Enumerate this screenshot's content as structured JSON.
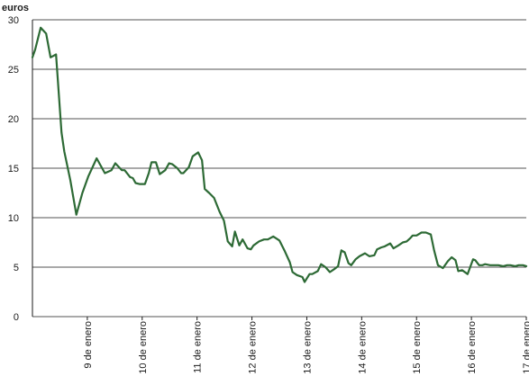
{
  "chart_data": {
    "type": "line",
    "title": "",
    "ylabel": "euros",
    "xlabel": "",
    "ylim": [
      0,
      30
    ],
    "yticks": [
      0,
      5,
      10,
      15,
      20,
      25,
      30
    ],
    "grid": true,
    "x_tick_labels": [
      {
        "x": 1,
        "label": "9 de enero"
      },
      {
        "x": 2,
        "label": "10 de enero"
      },
      {
        "x": 3,
        "label": "11 de enero"
      },
      {
        "x": 4,
        "label": "12 de enero"
      },
      {
        "x": 5,
        "label": "13 de enero"
      },
      {
        "x": 6,
        "label": "14 de enero"
      },
      {
        "x": 7,
        "label": "15 de enero"
      },
      {
        "x": 8,
        "label": "16 de enero"
      },
      {
        "x": 9,
        "label": "17 de enero"
      }
    ],
    "colors": {
      "series": "#2d6a35",
      "grid": "#1a1a1a"
    },
    "series": [
      {
        "x": [
          0,
          0.05,
          0.15,
          0.25,
          0.33,
          0.43,
          0.53,
          0.58,
          0.69,
          0.8,
          0.91,
          1.02,
          1.17,
          1.32,
          1.44,
          1.51,
          1.63,
          1.68,
          1.78,
          1.83,
          1.88,
          1.95,
          2.05,
          2.12,
          2.17,
          2.25,
          2.32,
          2.42,
          2.49,
          2.55,
          2.64,
          2.71,
          2.75,
          2.85,
          2.92,
          3.02,
          3.09,
          3.14,
          3.22,
          3.31,
          3.41,
          3.49,
          3.56,
          3.64,
          3.69,
          3.77,
          3.83,
          3.92,
          3.98,
          4.03,
          4.13,
          4.22,
          4.29,
          4.39,
          4.5,
          4.6,
          4.69,
          4.74,
          4.82,
          4.92,
          4.96,
          5.05,
          5.1,
          5.2,
          5.26,
          5.34,
          5.42,
          5.5,
          5.57,
          5.63,
          5.69,
          5.76,
          5.81,
          5.89,
          5.96,
          6.06,
          6.14,
          6.23,
          6.28,
          6.36,
          6.42,
          6.52,
          6.58,
          6.67,
          6.75,
          6.82,
          6.88,
          6.93,
          7,
          7.09,
          7.17,
          7.26,
          7.32,
          7.39,
          7.48,
          7.57,
          7.64,
          7.71,
          7.76,
          7.83,
          7.93,
          8.03,
          8.07,
          8.14,
          8.2,
          8.25,
          8.34,
          8.42,
          8.49,
          8.58,
          8.65,
          8.71,
          8.8,
          8.86,
          8.94,
          9.0
        ],
        "y": [
          26.2,
          27,
          29.2,
          28.6,
          26.2,
          26.5,
          18.6,
          16.7,
          13.8,
          10.3,
          12.5,
          14.2,
          16,
          14.5,
          14.8,
          15.5,
          14.8,
          14.8,
          14.1,
          14,
          13.5,
          13.4,
          13.4,
          14.5,
          15.6,
          15.6,
          14.4,
          14.8,
          15.5,
          15.4,
          15,
          14.5,
          14.5,
          15.1,
          16.2,
          16.6,
          15.8,
          12.9,
          12.5,
          12,
          10.6,
          9.7,
          7.6,
          7.1,
          8.6,
          7.2,
          7.8,
          6.9,
          6.8,
          7.2,
          7.6,
          7.8,
          7.8,
          8.1,
          7.7,
          6.6,
          5.5,
          4.5,
          4.2,
          4,
          3.5,
          4.3,
          4.3,
          4.6,
          5.3,
          5,
          4.5,
          4.8,
          5.1,
          6.7,
          6.5,
          5.4,
          5.2,
          5.8,
          6.1,
          6.4,
          6.1,
          6.2,
          6.8,
          7,
          7.1,
          7.4,
          6.9,
          7.2,
          7.5,
          7.6,
          7.9,
          8.2,
          8.2,
          8.5,
          8.5,
          8.3,
          6.7,
          5.2,
          4.9,
          5.6,
          6,
          5.7,
          4.6,
          4.7,
          4.3,
          5.8,
          5.7,
          5.2,
          5.2,
          5.3,
          5.2,
          5.2,
          5.2,
          5.1,
          5.2,
          5.2,
          5.1,
          5.2,
          5.2,
          5.1
        ]
      }
    ]
  }
}
